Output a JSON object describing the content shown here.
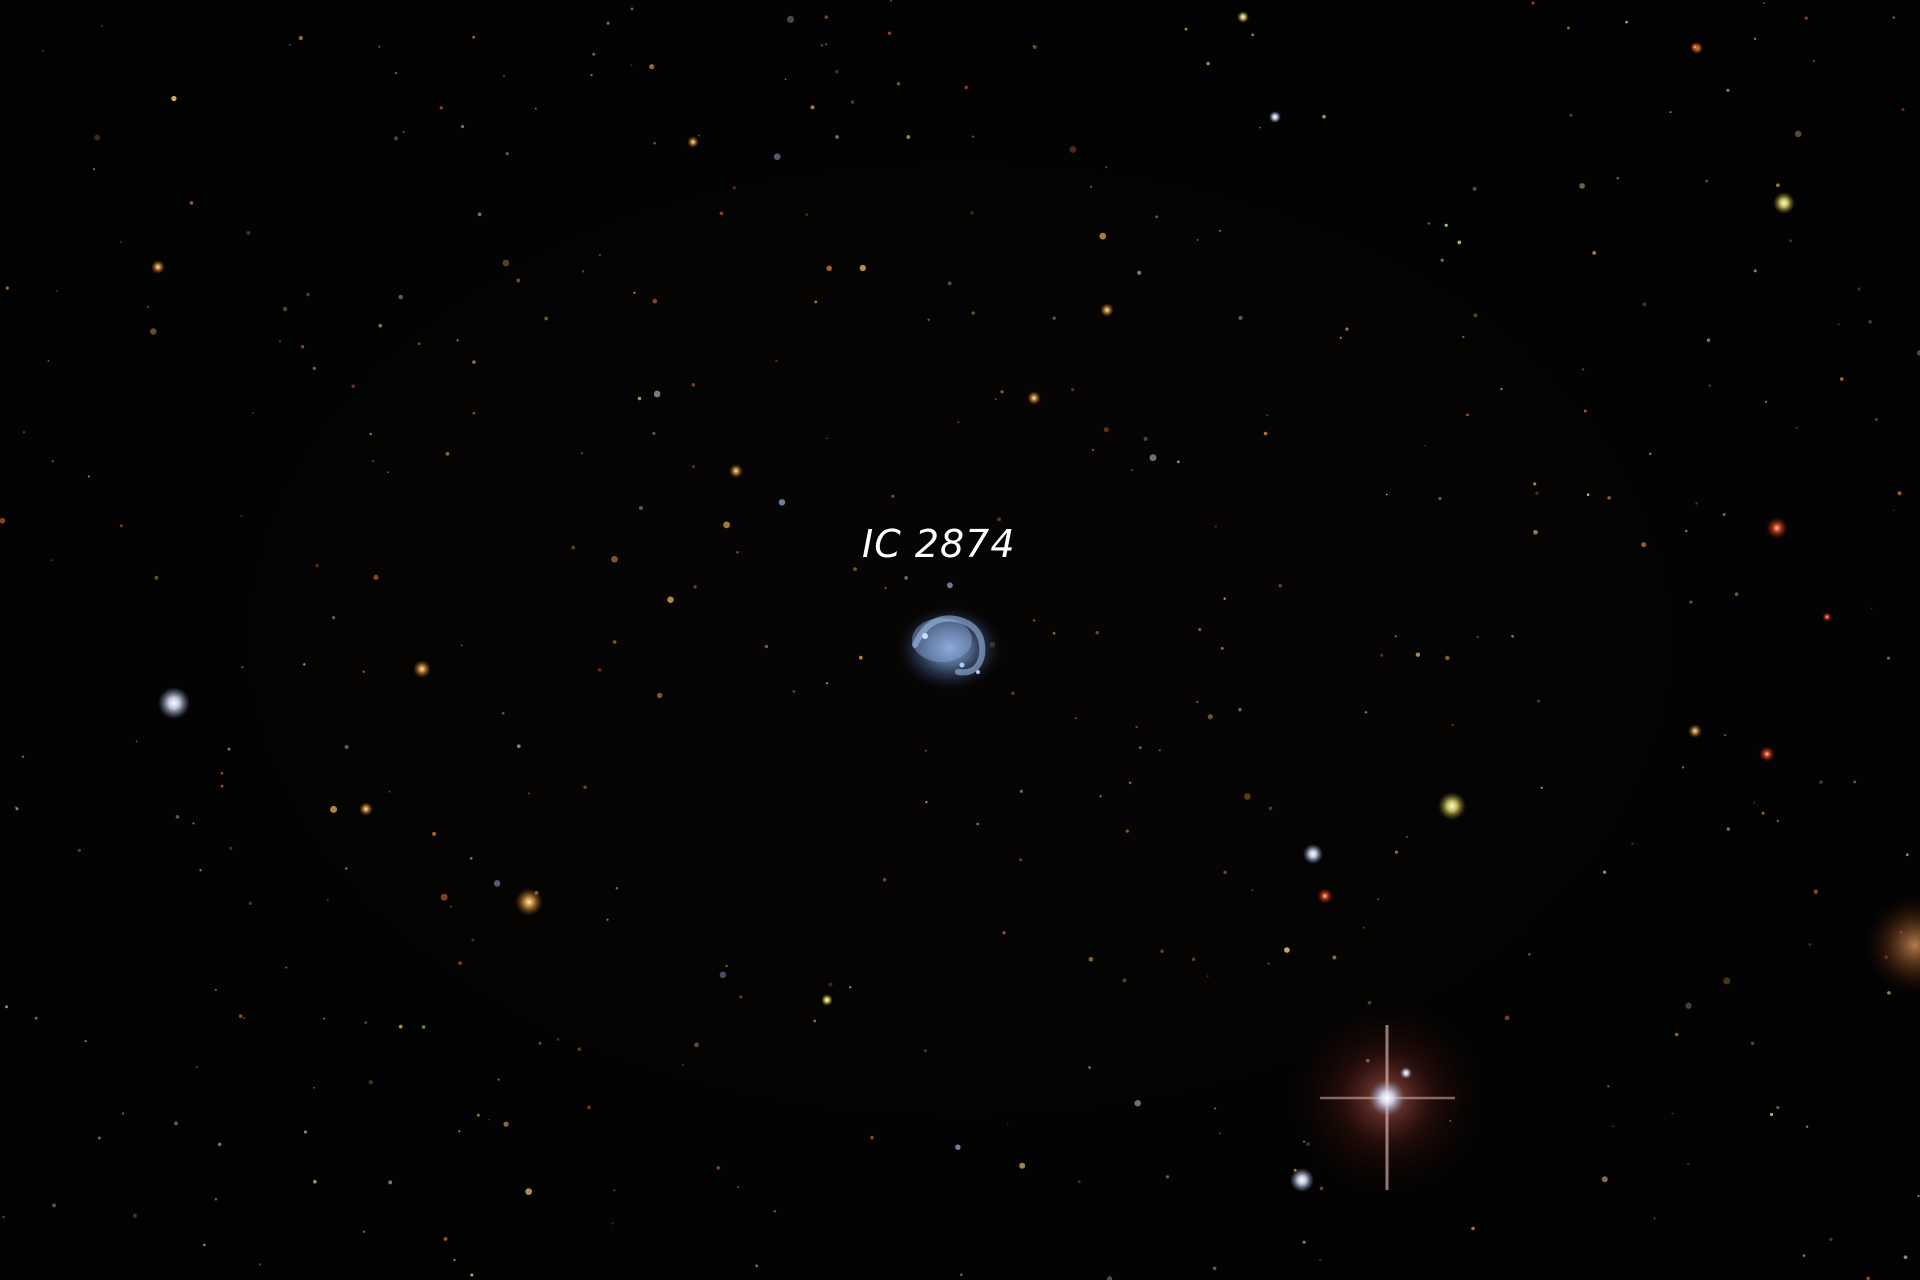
{
  "image": {
    "label": "IC 2874"
  },
  "colors": {
    "background": "#030202",
    "galaxy_core": "#6f8fc0",
    "galaxy_halo": "#3a4f7a",
    "label_text": "#ffffff",
    "star_orange": "#e0a040",
    "star_red": "#d84020",
    "star_white": "#f4f2ff",
    "star_yellow": "#e8e070"
  }
}
